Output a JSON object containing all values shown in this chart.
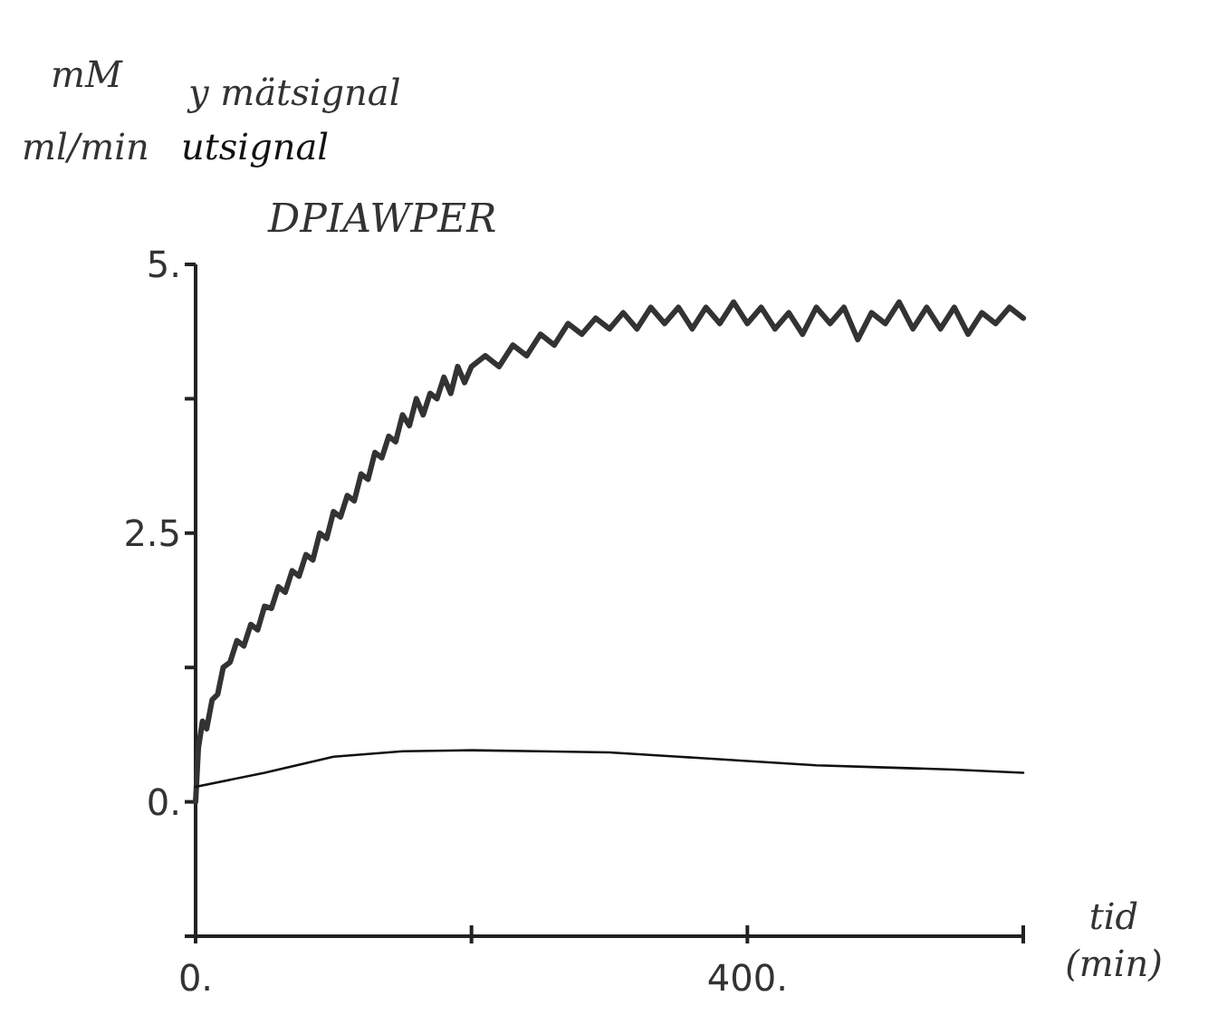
{
  "chart_data": {
    "type": "line",
    "title": "DPIAWPER",
    "xlabel": "tid (min)",
    "annotations": [
      "mM",
      "ml/min"
    ],
    "legend": "top left",
    "grid": false,
    "marker": "none",
    "line_style": "solid",
    "xlim": [
      0,
      600
    ],
    "xticks": [
      {
        "value": 0,
        "label": "0."
      },
      {
        "value": 200,
        "label": null
      },
      {
        "value": 400,
        "label": "400."
      },
      {
        "value": 600,
        "label": null
      }
    ],
    "ylim": [
      -1.25,
      5
    ],
    "yticks": [
      {
        "value": -1.25,
        "label": null
      },
      {
        "value": 0,
        "label": "0."
      },
      {
        "value": 1.25,
        "label": null
      },
      {
        "value": 2.5,
        "label": "2.5"
      },
      {
        "value": 3.75,
        "label": null
      },
      {
        "value": 5,
        "label": "5."
      }
    ],
    "series": [
      {
        "name": "y mätsignal",
        "color": "#333333",
        "x": [
          0,
          2,
          5,
          8,
          12,
          16,
          20,
          25,
          30,
          35,
          40,
          45,
          50,
          55,
          60,
          65,
          70,
          75,
          80,
          85,
          90,
          95,
          100,
          105,
          110,
          115,
          120,
          125,
          130,
          135,
          140,
          145,
          150,
          155,
          160,
          165,
          170,
          175,
          180,
          185,
          190,
          195,
          200,
          210,
          220,
          230,
          240,
          250,
          260,
          270,
          280,
          290,
          300,
          310,
          320,
          330,
          340,
          350,
          360,
          370,
          380,
          390,
          400,
          410,
          420,
          430,
          440,
          450,
          460,
          470,
          480,
          490,
          500,
          510,
          520,
          530,
          540,
          550,
          560,
          570,
          580,
          590,
          600
        ],
        "values": [
          0,
          0.5,
          0.75,
          0.68,
          0.95,
          1.0,
          1.25,
          1.3,
          1.5,
          1.45,
          1.65,
          1.6,
          1.82,
          1.8,
          2.0,
          1.95,
          2.15,
          2.1,
          2.3,
          2.25,
          2.5,
          2.45,
          2.7,
          2.65,
          2.85,
          2.8,
          3.05,
          3.0,
          3.25,
          3.2,
          3.4,
          3.35,
          3.6,
          3.5,
          3.75,
          3.6,
          3.8,
          3.75,
          3.95,
          3.8,
          4.05,
          3.9,
          4.05,
          4.15,
          4.05,
          4.25,
          4.15,
          4.35,
          4.25,
          4.45,
          4.35,
          4.5,
          4.4,
          4.55,
          4.4,
          4.6,
          4.45,
          4.6,
          4.4,
          4.6,
          4.45,
          4.65,
          4.45,
          4.6,
          4.4,
          4.55,
          4.35,
          4.6,
          4.45,
          4.6,
          4.3,
          4.55,
          4.45,
          4.65,
          4.4,
          4.6,
          4.4,
          4.6,
          4.35,
          4.55,
          4.45,
          4.6,
          4.5
        ]
      },
      {
        "name": "utsignal",
        "color": "#111111",
        "x": [
          0,
          50,
          100,
          150,
          200,
          250,
          300,
          350,
          400,
          450,
          500,
          550,
          600
        ],
        "values": [
          0.14,
          0.27,
          0.42,
          0.47,
          0.48,
          0.47,
          0.46,
          0.42,
          0.38,
          0.34,
          0.32,
          0.3,
          0.27
        ]
      }
    ]
  }
}
